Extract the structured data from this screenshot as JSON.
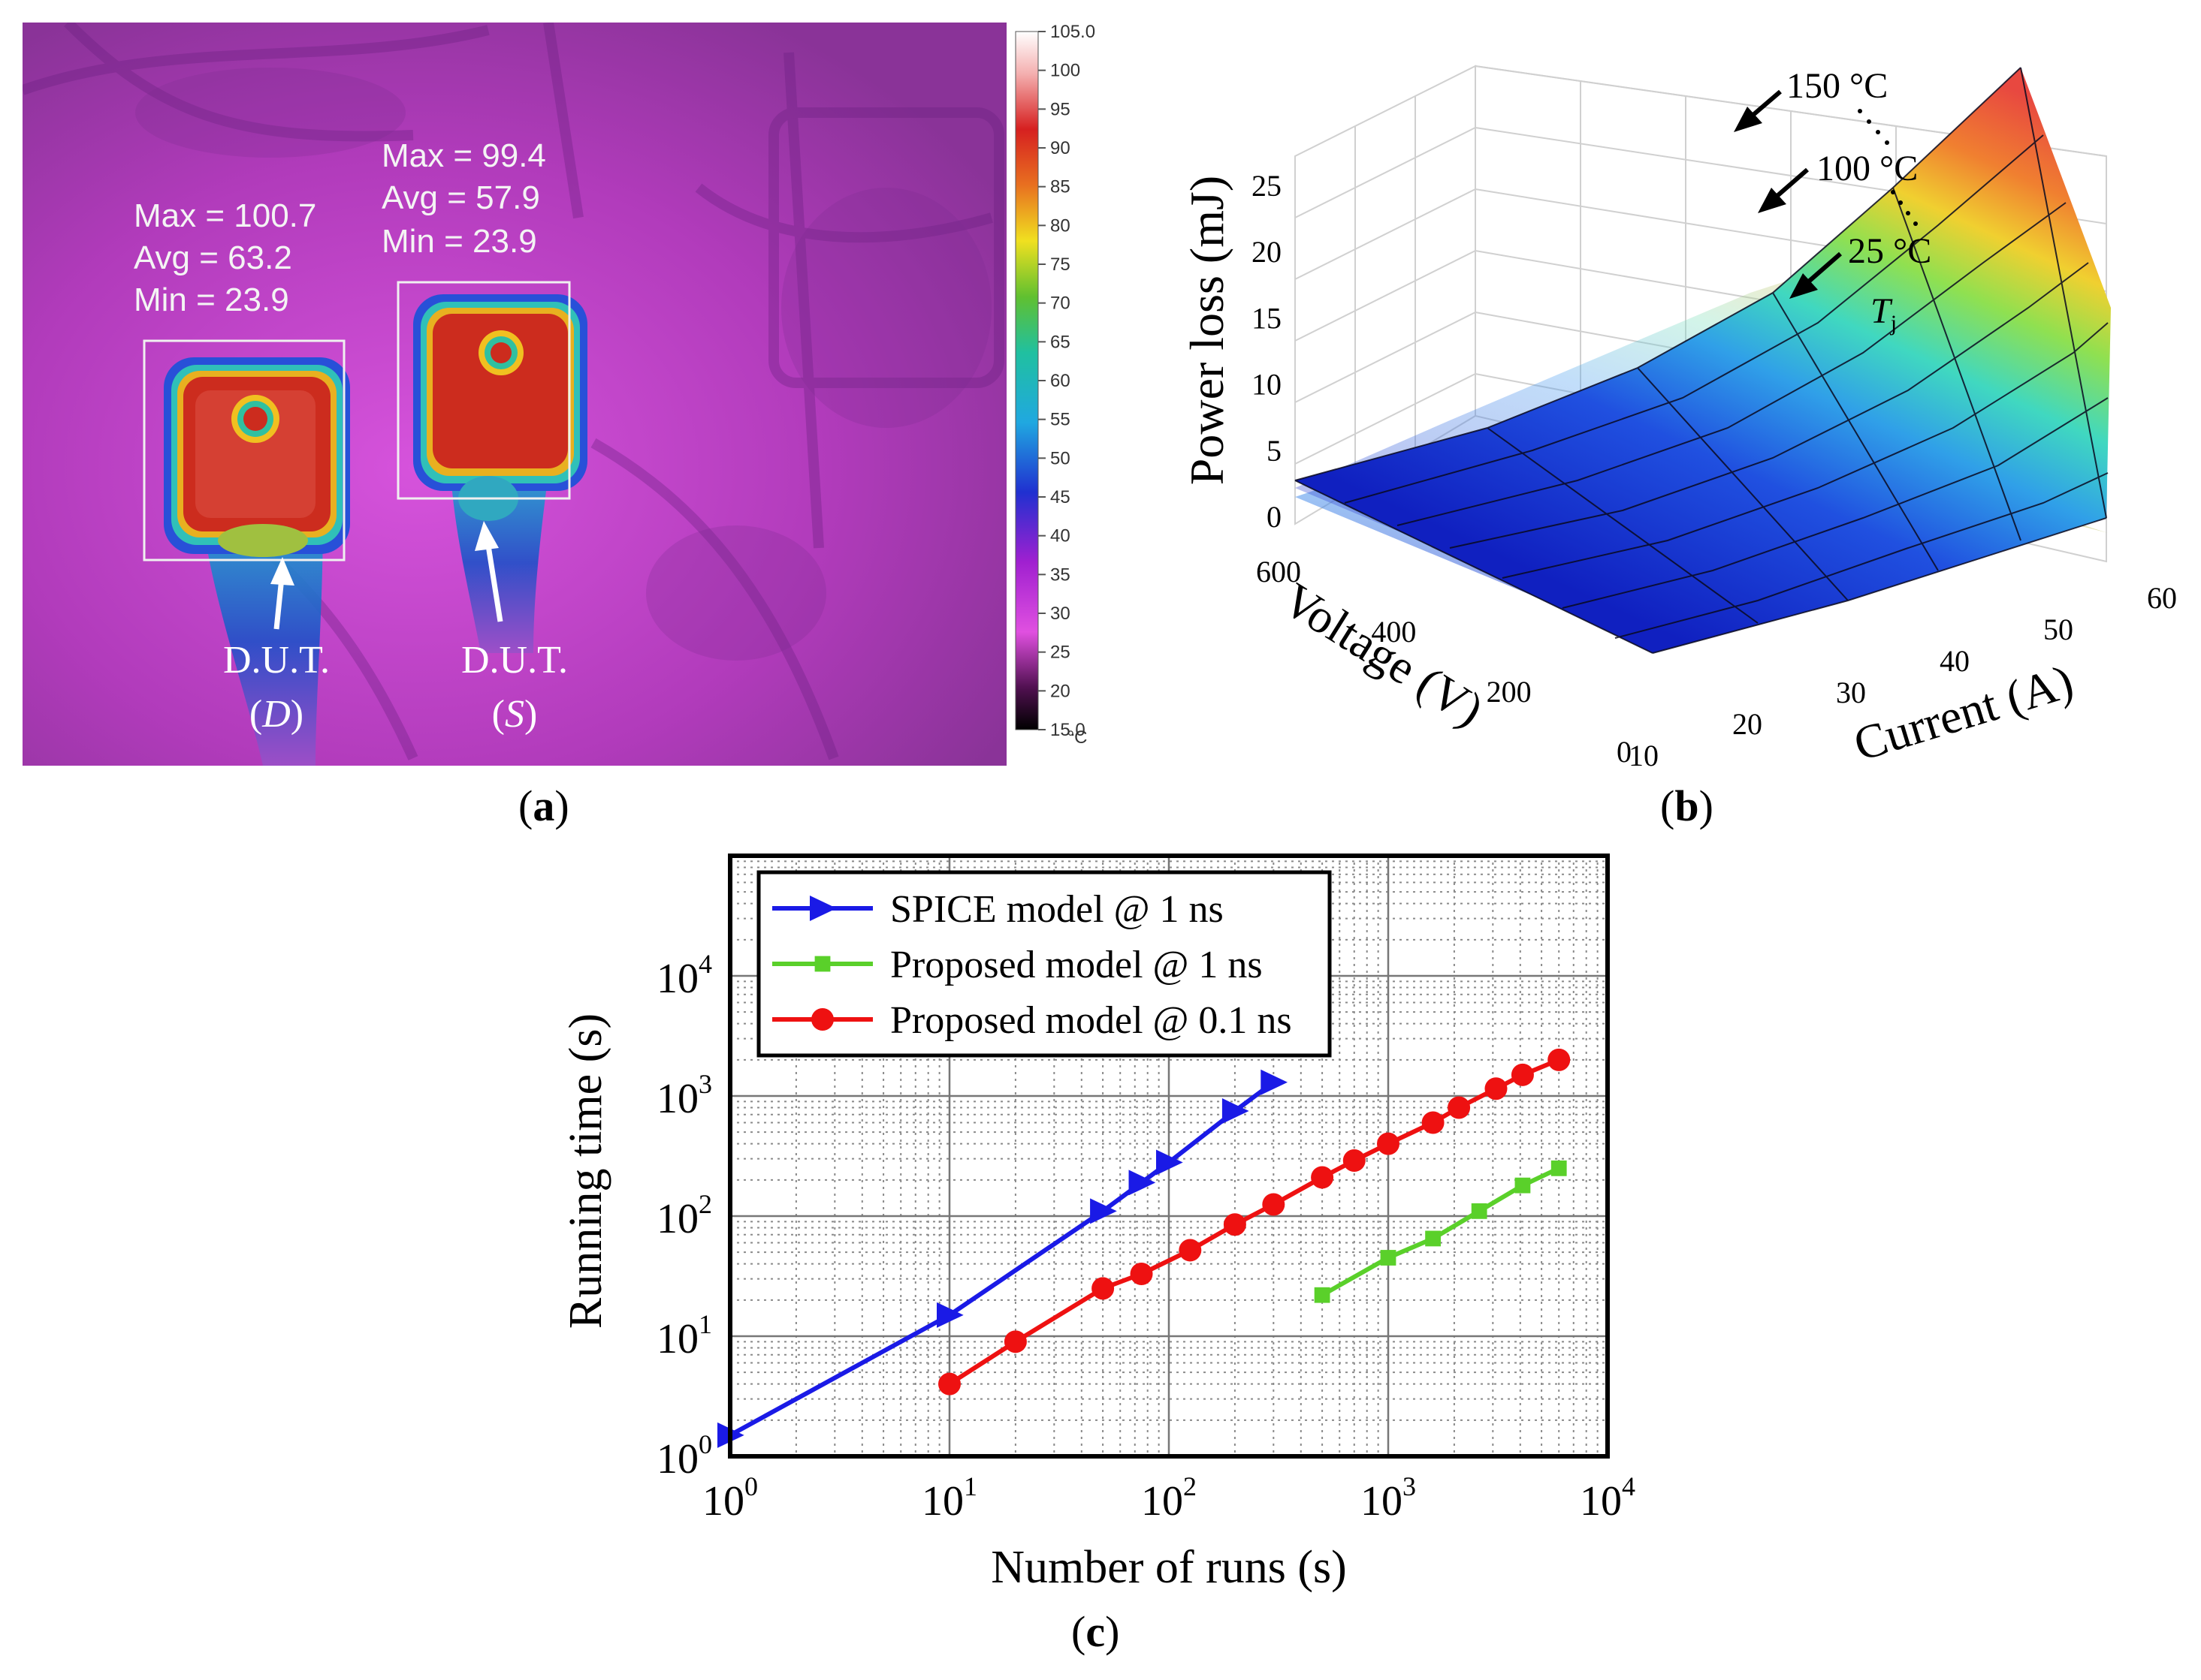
{
  "panels": {
    "a": {
      "label": "a"
    },
    "b": {
      "label": "b"
    },
    "c": {
      "label": "c"
    }
  },
  "thermal": {
    "colorbar": {
      "ticks": [
        105.0,
        100,
        95,
        90,
        85,
        80,
        75,
        70,
        65,
        60,
        55,
        50,
        45,
        40,
        35,
        30,
        25,
        20,
        15.0
      ],
      "tick_labels": [
        "105.0",
        "100",
        "95",
        "90",
        "85",
        "80",
        "75",
        "70",
        "65",
        "60",
        "55",
        "50",
        "45",
        "40",
        "35",
        "30",
        "25",
        "20",
        "15.0"
      ],
      "unit": "°C"
    },
    "devices": [
      {
        "stats": [
          "Max = 100.7",
          "Avg = 63.2",
          "Min = 23.9"
        ],
        "label_line1": "D.U.T.",
        "label_line2_prefix": "(",
        "label_line2_italic": "D",
        "label_line2_suffix": ")"
      },
      {
        "stats": [
          "Max = 99.4",
          "Avg = 57.9",
          "Min = 23.9"
        ],
        "label_line1": "D.U.T.",
        "label_line2_prefix": "(",
        "label_line2_italic": "S",
        "label_line2_suffix": ")"
      }
    ],
    "colors": {
      "background": "#c13dc8",
      "hot": "#c8281e",
      "warm": "#f0c020",
      "mid": "#20c8b0",
      "cool": "#2040d0"
    }
  },
  "chart_data": [
    {
      "type": "surface3d",
      "zlabel": "Power loss (mJ)",
      "xlabel": "Voltage (V)",
      "ylabel": "Current (A)",
      "z_ticks": [
        "0",
        "5",
        "10",
        "15",
        "20",
        "25"
      ],
      "voltage_ticks": [
        "0",
        "200",
        "400",
        "600"
      ],
      "current_ticks": [
        "10",
        "20",
        "30",
        "40",
        "50",
        "60"
      ],
      "zlim": [
        0,
        25
      ],
      "voltage_range": [
        0,
        600
      ],
      "current_range": [
        10,
        60
      ],
      "series": [
        {
          "name": "150 °C",
          "peak_value": 23.8
        },
        {
          "name": "100 °C",
          "peak_value": 21.5
        },
        {
          "name": "25 °C",
          "peak_value": 19.5
        }
      ],
      "annotation": {
        "label_prefix": "T",
        "label_subscript": "j"
      }
    },
    {
      "type": "line",
      "xlabel": "Number of runs (s)",
      "ylabel": "Running time (s)",
      "xscale": "log",
      "yscale": "log",
      "xlim": [
        1,
        10000
      ],
      "ylim": [
        1,
        100000
      ],
      "x_ticks": [
        1,
        10,
        100,
        1000,
        10000
      ],
      "x_tick_labels": [
        {
          "base": "10",
          "exp": "0"
        },
        {
          "base": "10",
          "exp": "1"
        },
        {
          "base": "10",
          "exp": "2"
        },
        {
          "base": "10",
          "exp": "3"
        },
        {
          "base": "10",
          "exp": "4"
        }
      ],
      "y_ticks": [
        1,
        10,
        100,
        1000,
        10000
      ],
      "y_tick_labels": [
        {
          "base": "10",
          "exp": "0"
        },
        {
          "base": "10",
          "exp": "1"
        },
        {
          "base": "10",
          "exp": "2"
        },
        {
          "base": "10",
          "exp": "3"
        },
        {
          "base": "10",
          "exp": "4"
        }
      ],
      "grid": true,
      "legend": "top-left",
      "series": [
        {
          "name": "SPICE model @ 1 ns",
          "color": "#1a1ae6",
          "marker": "triangle-right",
          "x": [
            1,
            10,
            50,
            75,
            100,
            200,
            300
          ],
          "y": [
            1.5,
            15,
            110,
            190,
            280,
            750,
            1300
          ]
        },
        {
          "name": "Proposed model @ 1 ns",
          "color": "#5ad02a",
          "marker": "square",
          "x": [
            500,
            1000,
            1600,
            2600,
            4100,
            6000
          ],
          "y": [
            22,
            45,
            65,
            110,
            180,
            250
          ]
        },
        {
          "name": "Proposed model @ 0.1 ns",
          "color": "#ee1111",
          "marker": "circle",
          "x": [
            10,
            20,
            50,
            75,
            125,
            200,
            300,
            500,
            700,
            1000,
            1600,
            2100,
            3100,
            4100,
            6000
          ],
          "y": [
            4,
            9,
            25,
            33,
            52,
            85,
            125,
            210,
            290,
            400,
            600,
            800,
            1150,
            1500,
            2000
          ]
        }
      ]
    }
  ]
}
